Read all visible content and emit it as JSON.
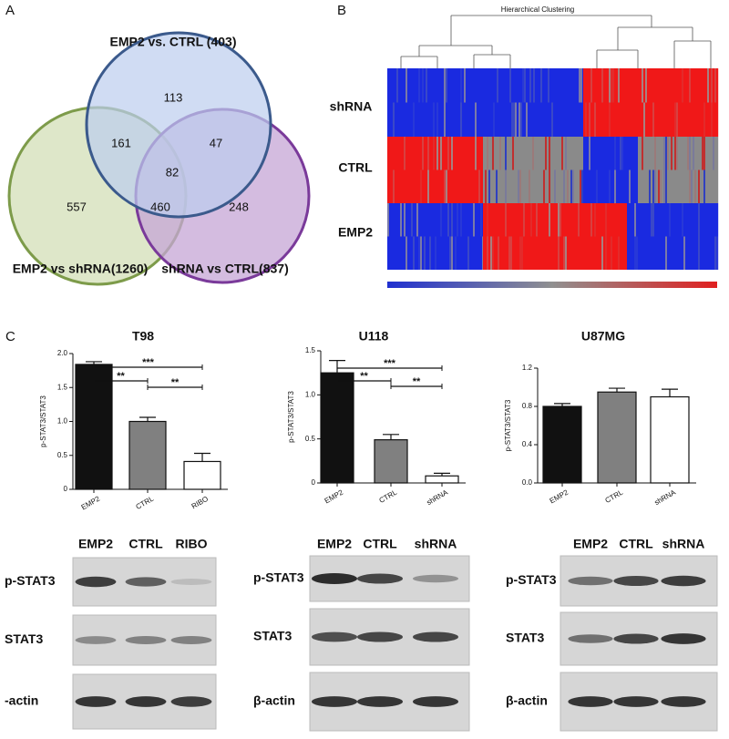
{
  "panels": {
    "a": "A",
    "b": "B",
    "c": "C"
  },
  "venn": {
    "sets": [
      "EMP2 vs. CTRL (403)",
      "EMP2 vs shRNA(1260)",
      "shRNA vs CTRL(837)"
    ],
    "counts": {
      "blue_only": "113",
      "blue_green": "161",
      "blue_purple": "47",
      "all": "82",
      "green_only": "557",
      "green_purple": "460",
      "purple_only": "248"
    }
  },
  "heatmap": {
    "title": "Hierarchical Clustering",
    "rows": [
      "shRNA",
      "CTRL",
      "EMP2"
    ]
  },
  "chart_data": [
    {
      "type": "bar",
      "title": "T98",
      "y_label": "p-STAT3/STAT3",
      "categories": [
        "EMP2",
        "CTRL",
        "RIBO"
      ],
      "values": [
        1.84,
        1.0,
        0.41
      ],
      "errors": [
        0.04,
        0.06,
        0.12
      ],
      "colors": [
        "#111111",
        "#808080",
        "#ffffff"
      ],
      "ylim": [
        0,
        2
      ],
      "yticks": [
        0,
        0.5,
        {
          "value": 1,
          "label": "1.0"
        },
        1.5,
        {
          "value": 2,
          "label": "2.0"
        }
      ],
      "annotations": [
        "***",
        "**",
        "**"
      ]
    },
    {
      "type": "bar",
      "title": "U118",
      "y_label": "p-STAT3/STAT3",
      "categories": [
        "EMP2",
        "CTRL",
        "shRNA"
      ],
      "values": [
        1.25,
        0.49,
        0.08
      ],
      "errors": [
        0.14,
        0.06,
        0.03
      ],
      "colors": [
        "#111111",
        "#808080",
        "#ffffff"
      ],
      "ylim": [
        0,
        1.5
      ],
      "yticks": [
        0,
        0.5,
        {
          "value": 1,
          "label": "1.0"
        },
        1.5
      ],
      "annotations": [
        "***",
        "**",
        "**"
      ]
    },
    {
      "type": "bar",
      "title": "U87MG",
      "y_label": "p-STAT3/STAT3",
      "categories": [
        "EMP2",
        "CTRL",
        "shRNA"
      ],
      "values": [
        0.8,
        0.95,
        0.9
      ],
      "errors": [
        0.03,
        0.04,
        0.08
      ],
      "colors": [
        "#111111",
        "#808080",
        "#ffffff"
      ],
      "ylim": [
        0,
        1.2
      ],
      "yticks": [
        {
          "value": 0,
          "label": "0.0"
        },
        0.4,
        0.8,
        1.2
      ],
      "annotations": []
    }
  ],
  "blots": [
    {
      "lanes": [
        "EMP2",
        "CTRL",
        "RIBO"
      ],
      "rows": [
        "p-STAT3",
        "STAT3",
        "-actin"
      ]
    },
    {
      "lanes": [
        "EMP2",
        "CTRL",
        "shRNA"
      ],
      "rows": [
        "p-STAT3",
        "STAT3",
        "β-actin"
      ]
    },
    {
      "lanes": [
        "EMP2",
        "CTRL",
        "shRNA"
      ],
      "rows": [
        "p-STAT3",
        "STAT3",
        "β-actin"
      ]
    }
  ]
}
